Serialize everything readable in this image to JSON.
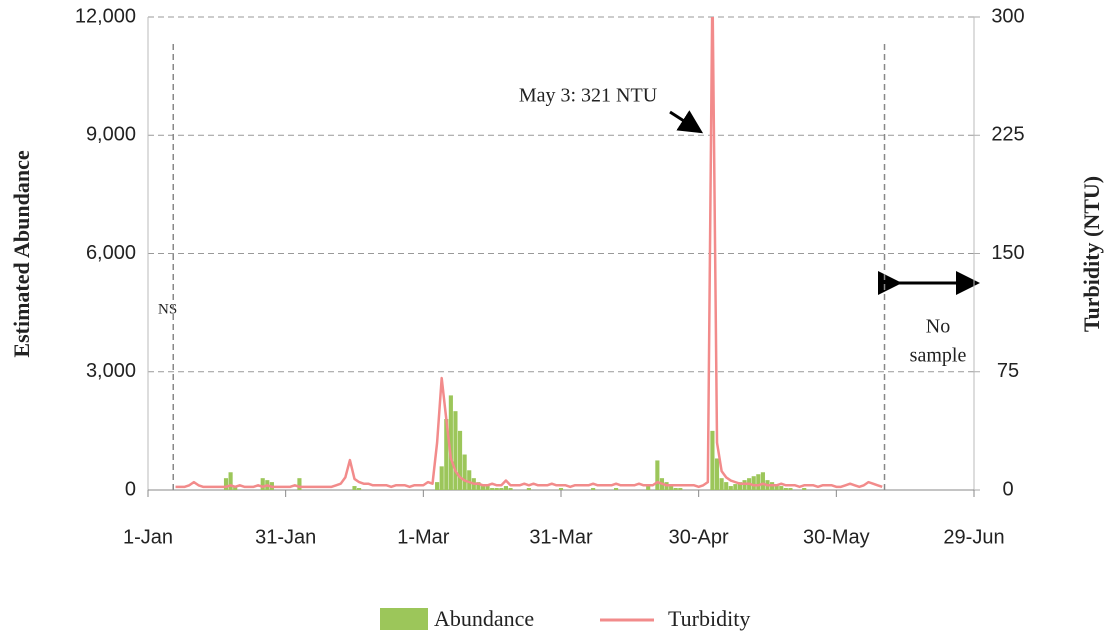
{
  "chart_data": {
    "type": "combo",
    "y_title": "Estimated Abundance",
    "y2_title": "Turbidity (NTU)",
    "x": [
      6,
      7,
      8,
      9,
      10,
      11,
      12,
      13,
      14,
      15,
      16,
      17,
      18,
      19,
      20,
      21,
      22,
      23,
      24,
      25,
      26,
      27,
      28,
      29,
      30,
      31,
      32,
      33,
      34,
      35,
      36,
      37,
      38,
      39,
      40,
      41,
      42,
      43,
      44,
      45,
      46,
      47,
      48,
      49,
      50,
      51,
      52,
      53,
      54,
      55,
      56,
      57,
      58,
      59,
      60,
      61,
      62,
      63,
      64,
      65,
      66,
      67,
      68,
      69,
      70,
      71,
      72,
      73,
      74,
      75,
      76,
      77,
      78,
      79,
      80,
      81,
      82,
      83,
      84,
      85,
      86,
      87,
      88,
      89,
      90,
      91,
      92,
      93,
      94,
      95,
      96,
      97,
      98,
      99,
      100,
      101,
      102,
      103,
      104,
      105,
      106,
      107,
      108,
      109,
      110,
      111,
      112,
      113,
      114,
      115,
      116,
      117,
      118,
      119,
      120,
      121,
      122,
      123,
      124,
      125,
      126,
      127,
      128,
      129,
      130,
      131,
      132,
      133,
      134,
      135,
      136,
      137,
      138,
      139,
      140,
      141,
      142,
      143,
      144,
      145,
      146,
      147,
      148,
      149,
      150,
      151,
      152,
      153,
      154,
      155,
      156,
      157,
      158,
      159,
      160
    ],
    "series": [
      {
        "name": "Abundance",
        "type": "bar",
        "color": "#9cc65a",
        "values": [
          0,
          0,
          0,
          0,
          0,
          0,
          0,
          0,
          0,
          0,
          0,
          300,
          450,
          100,
          0,
          0,
          0,
          0,
          0,
          300,
          250,
          200,
          0,
          0,
          0,
          0,
          0,
          300,
          0,
          0,
          0,
          0,
          0,
          0,
          0,
          0,
          0,
          0,
          0,
          100,
          50,
          0,
          0,
          0,
          0,
          0,
          0,
          0,
          0,
          0,
          0,
          0,
          0,
          0,
          0,
          0,
          0,
          200,
          600,
          1800,
          2400,
          2000,
          1500,
          900,
          500,
          300,
          200,
          100,
          100,
          50,
          50,
          50,
          100,
          50,
          0,
          0,
          0,
          50,
          0,
          0,
          0,
          0,
          0,
          0,
          50,
          0,
          0,
          0,
          0,
          0,
          0,
          50,
          0,
          0,
          0,
          0,
          50,
          0,
          0,
          0,
          0,
          0,
          0,
          100,
          0,
          750,
          300,
          200,
          100,
          50,
          50,
          0,
          0,
          0,
          0,
          0,
          0,
          1500,
          800,
          300,
          200,
          100,
          150,
          200,
          250,
          300,
          350,
          400,
          450,
          250,
          200,
          150,
          100,
          50,
          50,
          0,
          0,
          50,
          0,
          0,
          0,
          0,
          0,
          0,
          0,
          0,
          0,
          0,
          0,
          0,
          0,
          0,
          0,
          0,
          0
        ]
      },
      {
        "name": "Turbidity",
        "type": "line",
        "axis": "y2",
        "color": "#f28b8b",
        "values": [
          2,
          2,
          2,
          3,
          5,
          3,
          2,
          2,
          2,
          2,
          2,
          2,
          3,
          2,
          3,
          2,
          2,
          2,
          3,
          2,
          3,
          2,
          2,
          2,
          2,
          2,
          3,
          2,
          2,
          2,
          2,
          2,
          2,
          2,
          2,
          3,
          4,
          8,
          19,
          7,
          5,
          4,
          4,
          3,
          3,
          3,
          3,
          2,
          3,
          3,
          3,
          2,
          3,
          3,
          3,
          5,
          4,
          30,
          71,
          45,
          20,
          12,
          8,
          6,
          5,
          4,
          4,
          3,
          3,
          4,
          3,
          3,
          6,
          3,
          3,
          3,
          4,
          3,
          4,
          3,
          3,
          3,
          4,
          3,
          3,
          3,
          2,
          3,
          3,
          3,
          3,
          4,
          3,
          3,
          3,
          3,
          4,
          3,
          3,
          3,
          3,
          4,
          3,
          3,
          3,
          5,
          4,
          3,
          3,
          3,
          3,
          3,
          3,
          3,
          2,
          3,
          5,
          321,
          30,
          12,
          8,
          6,
          5,
          4,
          4,
          4,
          3,
          3,
          4,
          3,
          3,
          3,
          4,
          3,
          3,
          3,
          2,
          3,
          3,
          3,
          2,
          3,
          3,
          3,
          2,
          2,
          3,
          4,
          3,
          2,
          3,
          5,
          4,
          3,
          2
        ]
      }
    ],
    "xlim": [
      0,
      180
    ],
    "xticks": [
      {
        "value": 0,
        "label": "1-Jan"
      },
      {
        "value": 30,
        "label": "31-Jan"
      },
      {
        "value": 60,
        "label": "1-Mar"
      },
      {
        "value": 90,
        "label": "31-Mar"
      },
      {
        "value": 120,
        "label": "30-Apr"
      },
      {
        "value": 150,
        "label": "30-May"
      },
      {
        "value": 180,
        "label": "29-Jun"
      }
    ],
    "ylim": [
      0,
      12000
    ],
    "yticks": [
      0,
      {
        "value": 3000,
        "label": "3,000"
      },
      {
        "value": 6000,
        "label": "6,000"
      },
      {
        "value": 9000,
        "label": "9,000"
      },
      {
        "value": 12000,
        "label": "12,000"
      }
    ],
    "y2lim": [
      0,
      300
    ],
    "y2ticks": [
      0,
      75,
      150,
      225,
      300
    ],
    "grid": true,
    "sample_bounds": [
      5.5,
      160.5
    ],
    "annotations": {
      "peak": "May 3: 321 NTU",
      "ns": "NS",
      "no_sample": [
        "No",
        "sample"
      ]
    },
    "legend": "bottom"
  }
}
